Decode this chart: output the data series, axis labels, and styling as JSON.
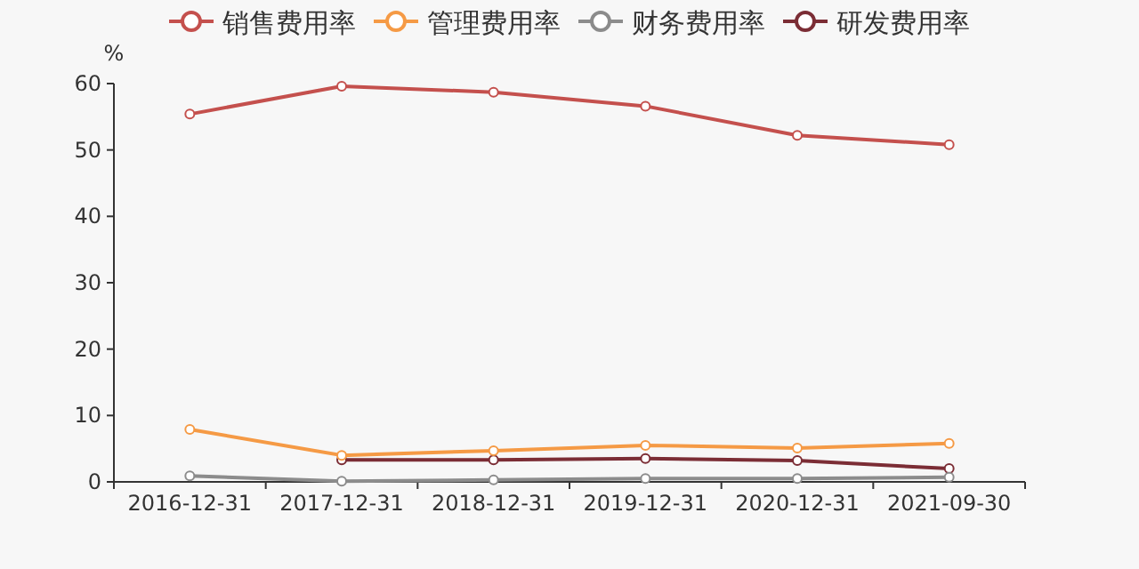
{
  "chart_data": {
    "type": "line",
    "ylabel": "%",
    "categories": [
      "2016-12-31",
      "2017-12-31",
      "2018-12-31",
      "2019-12-31",
      "2020-12-31",
      "2021-09-30"
    ],
    "series": [
      {
        "name": "销售费用率",
        "color": "#c4504d",
        "values": [
          55.4,
          59.6,
          58.7,
          56.6,
          52.2,
          50.8
        ]
      },
      {
        "name": "管理费用率",
        "color": "#f59a45",
        "values": [
          7.9,
          4.0,
          4.7,
          5.5,
          5.1,
          5.8
        ]
      },
      {
        "name": "财务费用率",
        "color": "#8c8c8c",
        "values": [
          0.9,
          0.1,
          0.3,
          0.5,
          0.5,
          0.7
        ]
      },
      {
        "name": "研发费用率",
        "color": "#7b2d35",
        "values": [
          null,
          3.3,
          3.3,
          3.5,
          3.2,
          2.0
        ]
      }
    ],
    "ylim": [
      0,
      60
    ],
    "yticks": [
      0,
      10,
      20,
      30,
      40,
      50,
      60
    ],
    "grid": false,
    "legend": "top",
    "marker": "circle",
    "line_style": "solid"
  }
}
